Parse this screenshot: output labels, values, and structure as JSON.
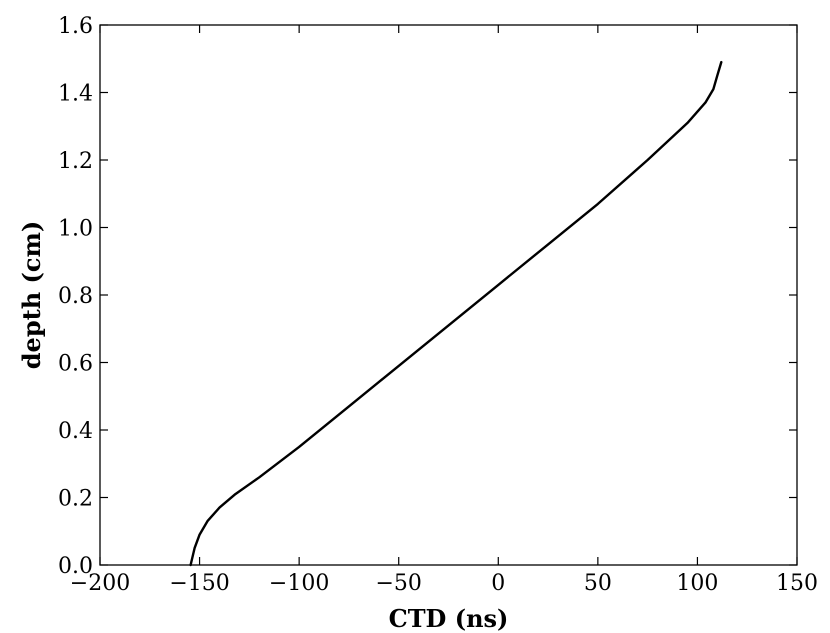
{
  "chart_data": {
    "type": "line",
    "title": "",
    "xlabel": "CTD (ns)",
    "ylabel": "depth (cm)",
    "xlim": [
      -200,
      150
    ],
    "ylim": [
      0.0,
      1.6
    ],
    "x_ticks": [
      {
        "value": -200,
        "label": "−200"
      },
      {
        "value": -150,
        "label": "−150"
      },
      {
        "value": -100,
        "label": "−100"
      },
      {
        "value": -50,
        "label": "−50"
      },
      {
        "value": 0,
        "label": "0"
      },
      {
        "value": 50,
        "label": "50"
      },
      {
        "value": 100,
        "label": "100"
      },
      {
        "value": 150,
        "label": "150"
      }
    ],
    "y_ticks": [
      {
        "value": 0.0,
        "label": "0.0"
      },
      {
        "value": 0.2,
        "label": "0.2"
      },
      {
        "value": 0.4,
        "label": "0.4"
      },
      {
        "value": 0.6,
        "label": "0.6"
      },
      {
        "value": 0.8,
        "label": "0.8"
      },
      {
        "value": 1.0,
        "label": "1.0"
      },
      {
        "value": 1.2,
        "label": "1.2"
      },
      {
        "value": 1.4,
        "label": "1.4"
      },
      {
        "value": 1.6,
        "label": "1.6"
      }
    ],
    "grid": false,
    "line_color": "#000000",
    "series": [
      {
        "x": [
          -154.5,
          -152.5,
          -150,
          -146,
          -140,
          -132,
          -120,
          -100,
          -75,
          -50,
          -25,
          0,
          25,
          50,
          75,
          95,
          104,
          108,
          110,
          112
        ],
        "y": [
          0.0,
          0.05,
          0.09,
          0.13,
          0.17,
          0.21,
          0.26,
          0.35,
          0.47,
          0.59,
          0.71,
          0.83,
          0.95,
          1.07,
          1.2,
          1.31,
          1.37,
          1.41,
          1.45,
          1.49
        ]
      }
    ]
  }
}
